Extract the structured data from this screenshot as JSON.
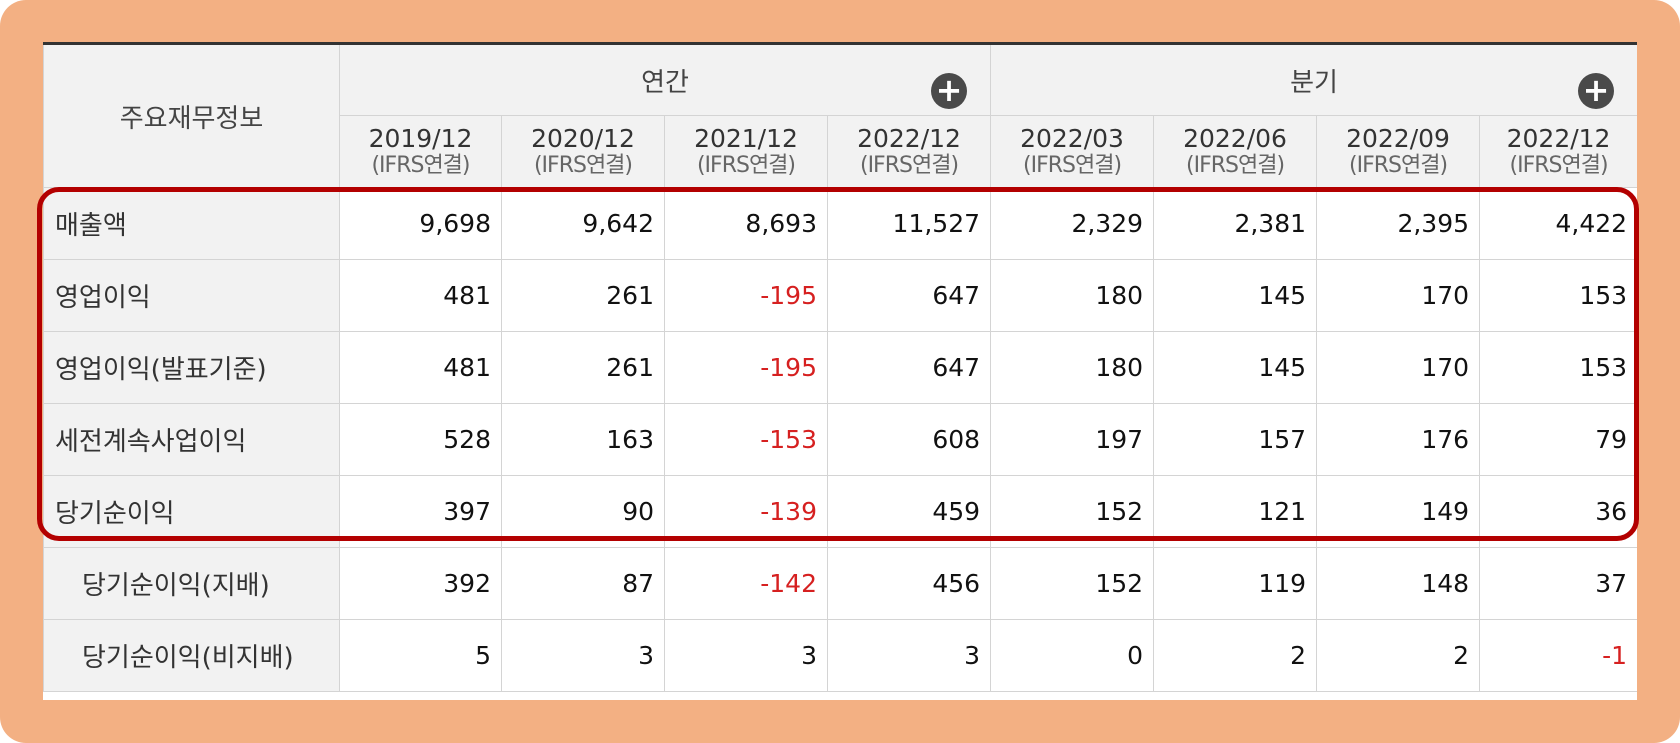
{
  "header": {
    "row_label": "주요재무정보",
    "groups": [
      {
        "label": "연간"
      },
      {
        "label": "분기"
      }
    ],
    "periods": [
      {
        "date": "2019/12",
        "type": "(IFRS연결)"
      },
      {
        "date": "2020/12",
        "type": "(IFRS연결)"
      },
      {
        "date": "2021/12",
        "type": "(IFRS연결)"
      },
      {
        "date": "2022/12",
        "type": "(IFRS연결)"
      },
      {
        "date": "2022/03",
        "type": "(IFRS연결)"
      },
      {
        "date": "2022/06",
        "type": "(IFRS연결)"
      },
      {
        "date": "2022/09",
        "type": "(IFRS연결)"
      },
      {
        "date": "2022/12",
        "type": "(IFRS연결)"
      }
    ]
  },
  "rows": [
    {
      "label": "매출액",
      "values": [
        "9,698",
        "9,642",
        "8,693",
        "11,527",
        "2,329",
        "2,381",
        "2,395",
        "4,422"
      ]
    },
    {
      "label": "영업이익",
      "values": [
        "481",
        "261",
        "-195",
        "647",
        "180",
        "145",
        "170",
        "153"
      ]
    },
    {
      "label": "영업이익(발표기준)",
      "values": [
        "481",
        "261",
        "-195",
        "647",
        "180",
        "145",
        "170",
        "153"
      ]
    },
    {
      "label": "세전계속사업이익",
      "values": [
        "528",
        "163",
        "-153",
        "608",
        "197",
        "157",
        "176",
        "79"
      ]
    },
    {
      "label": "당기순이익",
      "values": [
        "397",
        "90",
        "-139",
        "459",
        "152",
        "121",
        "149",
        "36"
      ]
    },
    {
      "label": "당기순이익(지배)",
      "values": [
        "392",
        "87",
        "-142",
        "456",
        "152",
        "119",
        "148",
        "37"
      ]
    },
    {
      "label": "당기순이익(비지배)",
      "values": [
        "5",
        "3",
        "3",
        "3",
        "0",
        "2",
        "2",
        "-1"
      ]
    }
  ],
  "colors": {
    "frame": "#f3b083",
    "highlight_border": "#b30000",
    "negative_text": "#d62020",
    "header_bg": "#f2f2f2"
  },
  "icons": {
    "expand": "plus-circle-icon",
    "expand_glyph": "+"
  }
}
